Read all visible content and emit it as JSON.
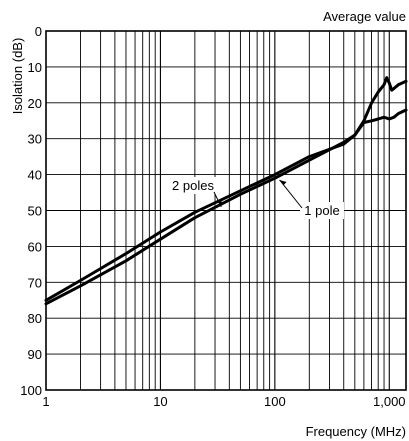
{
  "chart_data": {
    "type": "line",
    "title": "Average value",
    "xlabel": "Frequency (MHz)",
    "ylabel": "Isolation (dB)",
    "x_scale": "log",
    "xlim": [
      1,
      1400
    ],
    "ylim": [
      0,
      100
    ],
    "y_inverted": true,
    "grid": true,
    "x_ticks": [
      {
        "value": 1,
        "label": "1"
      },
      {
        "value": 10,
        "label": "10"
      },
      {
        "value": 100,
        "label": "100"
      },
      {
        "value": 1000,
        "label": "1,000"
      }
    ],
    "y_ticks": [
      0,
      10,
      20,
      30,
      40,
      50,
      60,
      70,
      80,
      90,
      100
    ],
    "series": [
      {
        "name": "1 pole",
        "x": [
          1,
          2,
          5,
          10,
          20,
          50,
          100,
          200,
          400,
          500,
          600,
          700,
          800,
          900,
          1000,
          1100,
          1200,
          1400
        ],
        "y": [
          76,
          71,
          64,
          58,
          52,
          45.5,
          41,
          36,
          31,
          29,
          25.5,
          25,
          24.5,
          24,
          24.5,
          24,
          23,
          22
        ]
      },
      {
        "name": "2 poles",
        "x": [
          1,
          2,
          5,
          10,
          20,
          50,
          100,
          200,
          400,
          500,
          600,
          700,
          800,
          900,
          950,
          1000,
          1050,
          1100,
          1200,
          1400
        ],
        "y": [
          75,
          69.5,
          62,
          56,
          50.5,
          44.5,
          40,
          35,
          31.5,
          29,
          25,
          20,
          17,
          15,
          13,
          14.5,
          16.5,
          16,
          15,
          14
        ]
      }
    ],
    "annotations": [
      {
        "text": "2 poles",
        "series": "2 poles"
      },
      {
        "text": "1 pole",
        "series": "1 pole"
      }
    ]
  }
}
